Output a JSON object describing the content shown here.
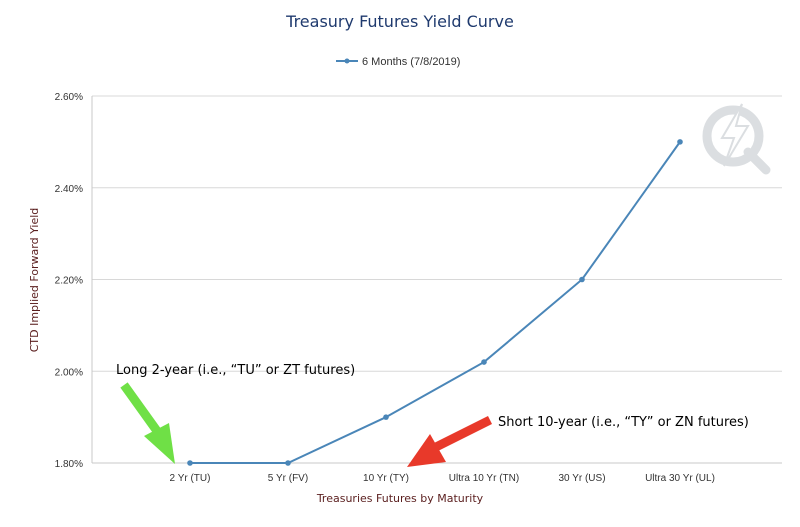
{
  "chart_data": {
    "type": "line",
    "title": "Treasury Futures Yield Curve",
    "xlabel": "Treasuries Futures by Maturity",
    "ylabel": "CTD Implied Forward Yield",
    "categories": [
      "2 Yr (TU)",
      "5 Yr (FV)",
      "10 Yr (TY)",
      "Ultra 10 Yr (TN)",
      "30 Yr (US)",
      "Ultra 30 Yr (UL)"
    ],
    "series": [
      {
        "name": "6 Months (7/8/2019)",
        "values": [
          1.8,
          1.8,
          1.9,
          2.02,
          2.2,
          2.5
        ]
      }
    ],
    "ylim": [
      1.8,
      2.6
    ],
    "yticks": [
      1.8,
      2.0,
      2.2,
      2.4,
      2.6
    ],
    "ytick_labels": [
      "1.80%",
      "2.00%",
      "2.20%",
      "2.40%",
      "2.60%"
    ],
    "grid": true,
    "legend_position": "top-center",
    "colors": {
      "series": "#4a86b8",
      "title": "#1f3a6e",
      "axis_title": "#5a1e1e",
      "grid": "#d8d8d8",
      "green_arrow": "#6fe046",
      "red_arrow": "#e8392a"
    },
    "annotations": [
      {
        "text": "Long 2-year (i.e., “TU” or ZT futures)",
        "target": "2 Yr (TU)",
        "arrow_color": "green"
      },
      {
        "text": "Short 10-year (i.e., “TY” or ZN futures)",
        "target": "10 Yr (TY)",
        "arrow_color": "red"
      }
    ]
  },
  "watermark": {
    "text": "Q",
    "icon": "quandl-lightning-q-logo"
  }
}
